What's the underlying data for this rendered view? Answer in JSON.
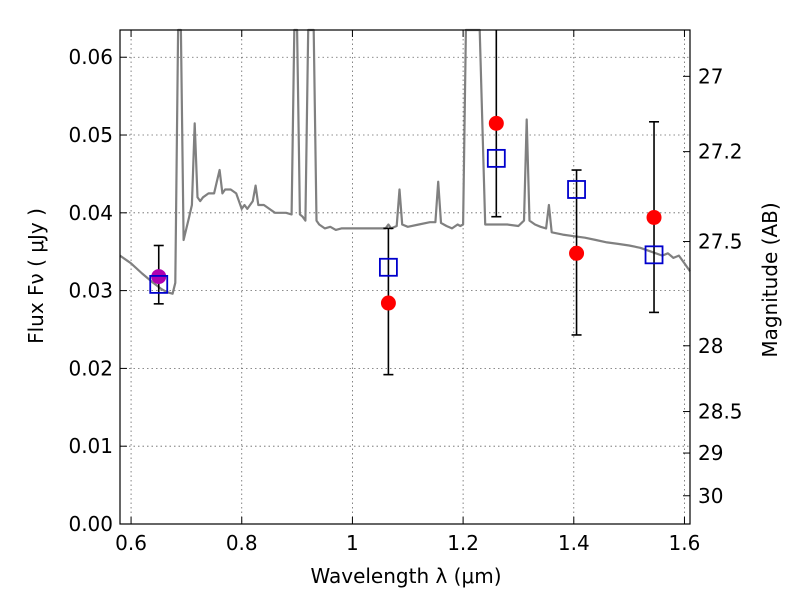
{
  "chart_data": {
    "type": "scatter",
    "xlabel": "Wavelength  λ (μm)",
    "ylabel": "Flux  Fν  ( μJy )",
    "ylabel_right": "Magnitude (AB)",
    "xlim": [
      0.58,
      1.61
    ],
    "ylim": [
      0.0,
      0.0635
    ],
    "grid": true,
    "x_ticks": [
      0.6,
      0.8,
      1.0,
      1.2,
      1.4,
      1.6
    ],
    "x_tick_labels": [
      "0.6",
      "0.8",
      "1",
      "1.2",
      "1.4",
      "1.6"
    ],
    "y_ticks": [
      0.0,
      0.01,
      0.02,
      0.03,
      0.04,
      0.05,
      0.06
    ],
    "y_tick_labels": [
      "0.00",
      "0.01",
      "0.02",
      "0.03",
      "0.04",
      "0.05",
      "0.06"
    ],
    "right_ticks": [
      27.0,
      27.2,
      27.5,
      28.0,
      28.5,
      29.0,
      30.0
    ],
    "right_tick_labels": [
      "27",
      "27.2",
      "27.5",
      "28",
      "28.5",
      "29",
      "30"
    ],
    "colors": {
      "spectrum": "#808080",
      "observed": "#ff0000",
      "model": "#0000cc",
      "highlight": "#b000b0",
      "errorbar": "#000000"
    },
    "series": [
      {
        "kind": "spectrum",
        "x": [
          0.58,
          0.6,
          0.62,
          0.64,
          0.655,
          0.665,
          0.675,
          0.68,
          0.685,
          0.69,
          0.695,
          0.7,
          0.705,
          0.71,
          0.715,
          0.72,
          0.725,
          0.73,
          0.74,
          0.75,
          0.755,
          0.76,
          0.765,
          0.77,
          0.78,
          0.79,
          0.8,
          0.805,
          0.81,
          0.82,
          0.825,
          0.83,
          0.84,
          0.85,
          0.86,
          0.87,
          0.88,
          0.89,
          0.895,
          0.9,
          0.905,
          0.91,
          0.915,
          0.92,
          0.925,
          0.93,
          0.935,
          0.94,
          0.95,
          0.96,
          0.97,
          0.98,
          0.99,
          1.0,
          1.02,
          1.04,
          1.06,
          1.065,
          1.07,
          1.08,
          1.085,
          1.09,
          1.1,
          1.12,
          1.14,
          1.15,
          1.155,
          1.16,
          1.17,
          1.18,
          1.19,
          1.195,
          1.2,
          1.205,
          1.21,
          1.22,
          1.23,
          1.24,
          1.25,
          1.26,
          1.28,
          1.3,
          1.31,
          1.315,
          1.32,
          1.33,
          1.34,
          1.35,
          1.355,
          1.36,
          1.38,
          1.4,
          1.42,
          1.44,
          1.46,
          1.48,
          1.5,
          1.52,
          1.54,
          1.56,
          1.57,
          1.58,
          1.59,
          1.6,
          1.61
        ],
        "y": [
          0.0345,
          0.0335,
          0.0322,
          0.031,
          0.0302,
          0.0298,
          0.0296,
          0.031,
          0.064,
          0.064,
          0.0365,
          0.038,
          0.0395,
          0.041,
          0.0515,
          0.042,
          0.0415,
          0.042,
          0.0425,
          0.0425,
          0.044,
          0.0455,
          0.0425,
          0.043,
          0.043,
          0.0425,
          0.0405,
          0.041,
          0.0405,
          0.0415,
          0.0435,
          0.041,
          0.041,
          0.0405,
          0.04,
          0.04,
          0.04,
          0.0398,
          0.064,
          0.064,
          0.0398,
          0.0395,
          0.039,
          0.064,
          0.064,
          0.064,
          0.039,
          0.0385,
          0.038,
          0.0382,
          0.0378,
          0.038,
          0.038,
          0.038,
          0.038,
          0.038,
          0.038,
          0.0385,
          0.038,
          0.0383,
          0.043,
          0.0385,
          0.0382,
          0.0385,
          0.0388,
          0.0388,
          0.044,
          0.0387,
          0.0383,
          0.038,
          0.0385,
          0.0383,
          0.0385,
          0.064,
          0.064,
          0.064,
          0.064,
          0.0385,
          0.0385,
          0.0385,
          0.0385,
          0.0383,
          0.039,
          0.052,
          0.039,
          0.0385,
          0.0382,
          0.038,
          0.041,
          0.0375,
          0.0372,
          0.037,
          0.0368,
          0.0365,
          0.0362,
          0.036,
          0.0358,
          0.0355,
          0.035,
          0.0345,
          0.0348,
          0.0342,
          0.0345,
          0.0335,
          0.0325
        ]
      },
      {
        "kind": "observed",
        "marker": "filled-circle",
        "x": [
          0.65,
          1.065,
          1.26,
          1.405,
          1.545
        ],
        "y": [
          0.0318,
          0.0284,
          0.0515,
          0.0348,
          0.0394
        ],
        "y_err_low": [
          0.0283,
          0.0192,
          0.0395,
          0.0243,
          0.0272
        ],
        "y_err_high": [
          0.0358,
          0.038,
          0.0635,
          0.0455,
          0.0517
        ]
      },
      {
        "kind": "model",
        "marker": "open-square",
        "x": [
          0.65,
          1.065,
          1.26,
          1.405,
          1.545
        ],
        "y": [
          0.0308,
          0.033,
          0.047,
          0.043,
          0.0346
        ]
      }
    ]
  }
}
